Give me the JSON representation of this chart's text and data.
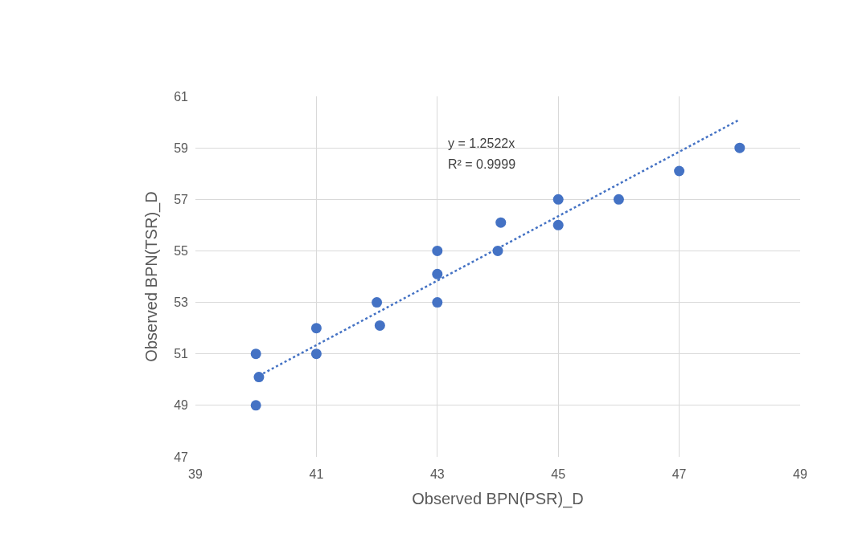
{
  "chart_data": {
    "type": "scatter",
    "xlabel": "Observed BPN(PSR)_D",
    "ylabel": "Observed BPN(TSR)_D",
    "x": [
      40,
      40.05,
      40,
      41,
      41,
      42,
      42.05,
      43,
      43,
      43,
      44,
      44.05,
      45,
      45,
      46,
      47,
      48
    ],
    "series": [
      {
        "color": "#4472c4",
        "values": [
          51,
          50.1,
          49,
          52,
          51,
          53,
          52.1,
          55,
          54.1,
          53,
          55,
          56.1,
          57,
          56,
          57,
          58.1,
          59
        ],
        "marker": "circle"
      },
      {
        "type": "line",
        "color": "#4472c4",
        "line_style": "dotted",
        "x": [
          40.05,
          48
        ],
        "values": [
          50.15,
          60.1
        ]
      }
    ],
    "annotations": [
      "y = 1.2522x",
      "R² = 0.9999"
    ],
    "xlim": [
      39,
      49
    ],
    "xticks": [
      39,
      41,
      43,
      45,
      47,
      49
    ],
    "ylim": [
      47,
      61
    ],
    "yticks": [
      47,
      49,
      51,
      53,
      55,
      57,
      59,
      61
    ],
    "grid": true,
    "legend": false
  }
}
